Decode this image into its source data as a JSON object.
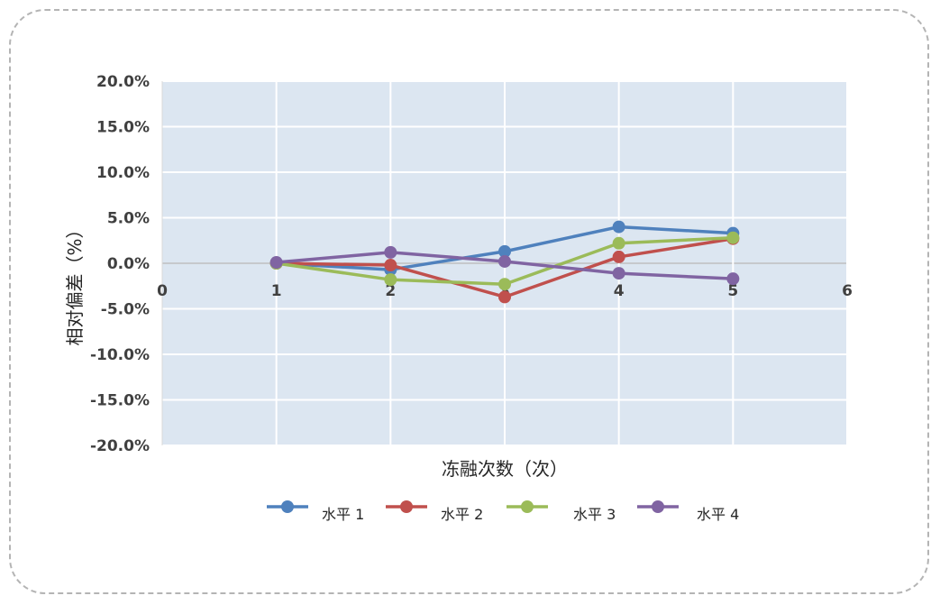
{
  "chart_data": {
    "type": "line",
    "xlabel": "冻融次数（次）",
    "ylabel": "相对偏差（%）",
    "xlim": [
      0,
      6
    ],
    "ylim": [
      -20.0,
      20.0
    ],
    "x_ticks": [
      0,
      1,
      2,
      3,
      4,
      5,
      6
    ],
    "y_ticks": [
      20.0,
      15.0,
      10.0,
      5.0,
      0.0,
      -5.0,
      -10.0,
      -15.0,
      -20.0
    ],
    "y_tick_labels": [
      "20.0%",
      "15.0%",
      "10.0%",
      "5.0%",
      "0.0%",
      "-5.0%",
      "-10.0%",
      "-15.0%",
      "-20.0%"
    ],
    "grid": true,
    "legend_position": "bottom",
    "x": [
      1,
      2,
      3,
      4,
      5
    ],
    "series": [
      {
        "name": "水平 1",
        "color": "#4F81BD",
        "values": [
          0.0,
          -0.7,
          1.3,
          4.0,
          3.3
        ]
      },
      {
        "name": "水平 2",
        "color": "#C0504D",
        "values": [
          0.0,
          -0.2,
          -3.7,
          0.7,
          2.7
        ]
      },
      {
        "name": "水平 3",
        "color": "#9BBB59",
        "values": [
          0.0,
          -1.8,
          -2.3,
          2.2,
          2.8
        ]
      },
      {
        "name": "水平 4",
        "color": "#8064A2",
        "values": [
          0.1,
          1.2,
          0.2,
          -1.1,
          -1.7
        ]
      }
    ]
  }
}
